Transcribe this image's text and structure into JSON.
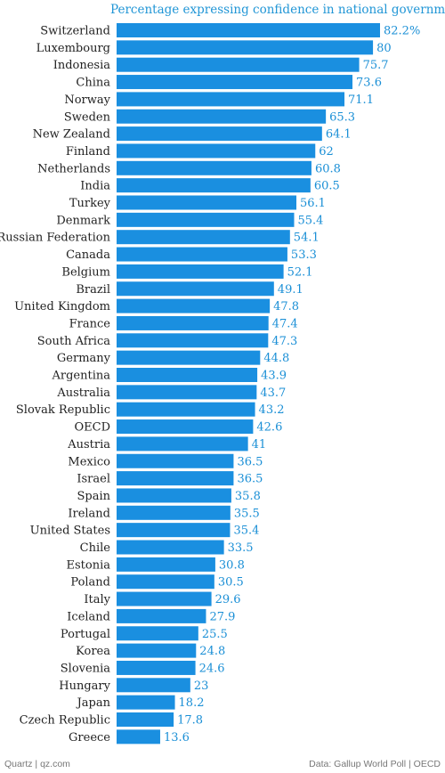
{
  "chart_data": {
    "type": "bar",
    "orientation": "horizontal",
    "title": "Percentage expressing confidence in national government",
    "categories": [
      "Switzerland",
      "Luxembourg",
      "Indonesia",
      "China",
      "Norway",
      "Sweden",
      "New Zealand",
      "Finland",
      "Netherlands",
      "India",
      "Turkey",
      "Denmark",
      "Russian Federation",
      "Canada",
      "Belgium",
      "Brazil",
      "United Kingdom",
      "France",
      "South Africa",
      "Germany",
      "Argentina",
      "Australia",
      "Slovak Republic",
      "OECD",
      "Austria",
      "Mexico",
      "Israel",
      "Spain",
      "Ireland",
      "United States",
      "Chile",
      "Estonia",
      "Poland",
      "Italy",
      "Iceland",
      "Portugal",
      "Korea",
      "Slovenia",
      "Hungary",
      "Japan",
      "Czech Republic",
      "Greece"
    ],
    "values": [
      82.2,
      80,
      75.7,
      73.6,
      71.1,
      65.3,
      64.1,
      62,
      60.8,
      60.5,
      56.1,
      55.4,
      54.1,
      53.3,
      52.1,
      49.1,
      47.8,
      47.4,
      47.3,
      44.8,
      43.9,
      43.7,
      43.2,
      42.6,
      41,
      36.5,
      36.5,
      35.8,
      35.5,
      35.4,
      33.5,
      30.8,
      30.5,
      29.6,
      27.9,
      25.5,
      24.8,
      24.6,
      23,
      18.2,
      17.8,
      13.6
    ],
    "value_labels": [
      "82.2%",
      "80",
      "75.7",
      "73.6",
      "71.1",
      "65.3",
      "64.1",
      "62",
      "60.8",
      "60.5",
      "56.1",
      "55.4",
      "54.1",
      "53.3",
      "52.1",
      "49.1",
      "47.8",
      "47.4",
      "47.3",
      "44.8",
      "43.9",
      "43.7",
      "43.2",
      "42.6",
      "41",
      "36.5",
      "36.5",
      "35.8",
      "35.5",
      "35.4",
      "33.5",
      "30.8",
      "30.5",
      "29.6",
      "27.9",
      "25.5",
      "24.8",
      "24.6",
      "23",
      "18.2",
      "17.8",
      "13.6"
    ],
    "xlim": [
      0,
      82.2
    ],
    "grid": false,
    "bar_color": "#1a8fe0",
    "label_color": "#1a8fd6"
  },
  "footer": {
    "left": "Quartz | qz.com",
    "right": "Data: Gallup World Poll | OECD"
  }
}
